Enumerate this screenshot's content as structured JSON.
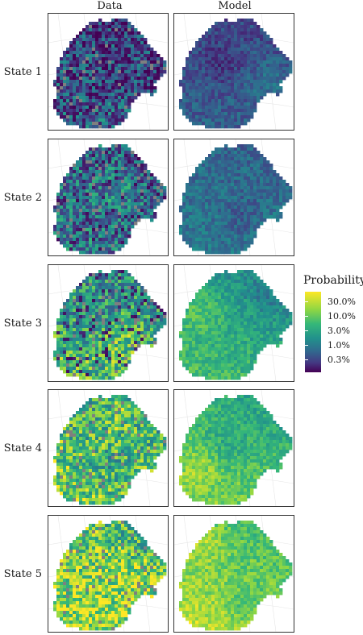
{
  "columns": [
    "Data",
    "Model"
  ],
  "rows": [
    "State 1",
    "State 2",
    "State 3",
    "State 4",
    "State 5"
  ],
  "legend": {
    "title": "Probability",
    "ticks": [
      "30.0%",
      "10.0%",
      "3.0%",
      "1.0%",
      "0.3%"
    ]
  },
  "colors": {
    "viridis": [
      "#440154",
      "#443983",
      "#31688e",
      "#21918c",
      "#35b779",
      "#90d743",
      "#fde725"
    ],
    "missing": "#7f7f7f"
  },
  "state_levels": {
    "data": [
      0.25,
      0.38,
      0.52,
      0.62,
      0.72
    ],
    "model": [
      0.28,
      0.38,
      0.52,
      0.62,
      0.72
    ]
  }
}
